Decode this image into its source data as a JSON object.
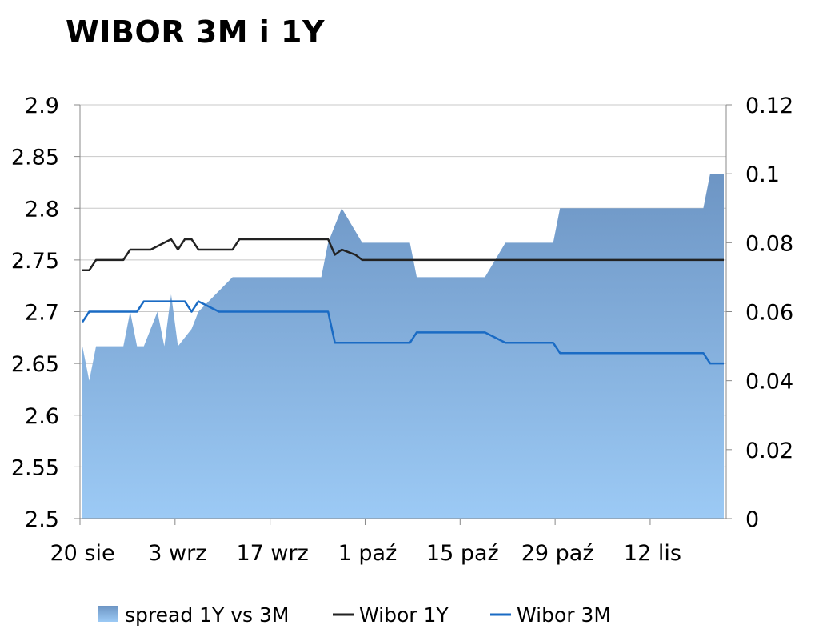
{
  "chart_data": {
    "type": "area",
    "title": "WIBOR 3M i 1Y",
    "x_labels": [
      "20 sie",
      "3 wrz",
      "17 wrz",
      "1 paź",
      "15 paź",
      "29 paź",
      "12 lis"
    ],
    "x_range": [
      0,
      94
    ],
    "y_left": {
      "ylim": [
        2.5,
        2.9
      ],
      "ticks": [
        "2.5",
        "2.55",
        "2.6",
        "2.65",
        "2.7",
        "2.75",
        "2.8",
        "2.85",
        "2.9"
      ]
    },
    "y_right": {
      "ylim": [
        0,
        0.12
      ],
      "ticks": [
        "0",
        "0.02",
        "0.04",
        "0.06",
        "0.08",
        "0.1",
        "0.12"
      ]
    },
    "grid": true,
    "legend_position": "bottom",
    "series": [
      {
        "name": "spread 1Y vs 3M",
        "axis": "right",
        "render": "area",
        "color": "#7aa3cf",
        "points": [
          [
            0,
            0.05
          ],
          [
            1,
            0.04
          ],
          [
            2,
            0.05
          ],
          [
            5,
            0.05
          ],
          [
            6,
            0.05
          ],
          [
            7,
            0.06
          ],
          [
            8,
            0.05
          ],
          [
            9,
            0.05
          ],
          [
            11,
            0.06
          ],
          [
            12,
            0.05
          ],
          [
            13,
            0.065
          ],
          [
            14,
            0.05
          ],
          [
            16,
            0.055
          ],
          [
            17,
            0.06
          ],
          [
            22,
            0.07
          ],
          [
            35,
            0.07
          ],
          [
            36,
            0.08
          ],
          [
            38,
            0.09
          ],
          [
            41,
            0.08
          ],
          [
            48,
            0.08
          ],
          [
            49,
            0.07
          ],
          [
            59,
            0.07
          ],
          [
            62,
            0.08
          ],
          [
            69,
            0.08
          ],
          [
            70,
            0.09
          ],
          [
            91,
            0.09
          ],
          [
            92,
            0.1
          ],
          [
            94,
            0.1
          ]
        ]
      },
      {
        "name": "Wibor 1Y",
        "axis": "left",
        "render": "line",
        "color": "#222222",
        "points": [
          [
            0,
            2.74
          ],
          [
            1,
            2.74
          ],
          [
            2,
            2.75
          ],
          [
            6,
            2.75
          ],
          [
            7,
            2.76
          ],
          [
            10,
            2.76
          ],
          [
            13,
            2.77
          ],
          [
            14,
            2.76
          ],
          [
            15,
            2.77
          ],
          [
            16,
            2.77
          ],
          [
            17,
            2.76
          ],
          [
            22,
            2.76
          ],
          [
            23,
            2.77
          ],
          [
            36,
            2.77
          ],
          [
            37,
            2.755
          ],
          [
            38,
            2.76
          ],
          [
            40,
            2.755
          ],
          [
            41,
            2.75
          ],
          [
            94,
            2.75
          ]
        ]
      },
      {
        "name": "Wibor 3M",
        "axis": "left",
        "render": "line",
        "color": "#1a6bc4",
        "points": [
          [
            0,
            2.69
          ],
          [
            1,
            2.7
          ],
          [
            8,
            2.7
          ],
          [
            9,
            2.71
          ],
          [
            15,
            2.71
          ],
          [
            16,
            2.7
          ],
          [
            17,
            2.71
          ],
          [
            20,
            2.7
          ],
          [
            36,
            2.7
          ],
          [
            37,
            2.67
          ],
          [
            48,
            2.67
          ],
          [
            49,
            2.68
          ],
          [
            59,
            2.68
          ],
          [
            62,
            2.67
          ],
          [
            69,
            2.67
          ],
          [
            70,
            2.66
          ],
          [
            91,
            2.66
          ],
          [
            92,
            2.65
          ],
          [
            94,
            2.65
          ]
        ]
      }
    ]
  }
}
